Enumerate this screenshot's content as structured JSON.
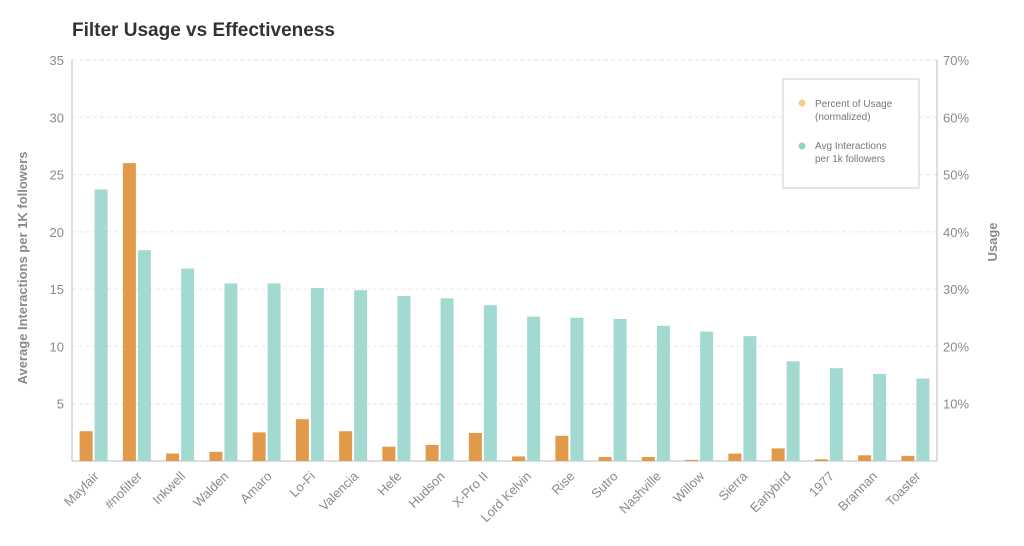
{
  "chart_data": {
    "type": "bar",
    "title": "Filter Usage vs Effectiveness",
    "ylabel": "Average Interactions per 1K followers",
    "y2label": "Usage",
    "ylim": [
      0,
      35
    ],
    "y2lim": [
      0,
      70
    ],
    "yticks": [
      "5",
      "10",
      "15",
      "20",
      "25",
      "30",
      "35"
    ],
    "y2ticks": [
      "10%",
      "20%",
      "30%",
      "40%",
      "50%",
      "60%",
      "70%"
    ],
    "grid": true,
    "legend_position": "top-right",
    "categories": [
      "Mayfair",
      "#nofilter",
      "Inkwell",
      "Walden",
      "Amaro",
      "Lo-Fi",
      "Valencia",
      "Hefe",
      "Hudson",
      "X-Pro II",
      "Lord Kelvin",
      "Rise",
      "Sutro",
      "Nashville",
      "Willow",
      "Sierra",
      "Earlybird",
      "1977",
      "Brannan",
      "Toaster"
    ],
    "series": [
      {
        "name": "Percent of Usage (normalized)",
        "axis": "right",
        "color": "#e09a4a",
        "legend_color": "#f7c98a",
        "values": [
          5.2,
          52.0,
          1.3,
          1.6,
          5.0,
          7.3,
          5.2,
          2.5,
          2.8,
          4.9,
          0.8,
          4.4,
          0.7,
          0.7,
          0.2,
          1.3,
          2.2,
          0.3,
          1.0,
          0.9
        ]
      },
      {
        "name": "Avg Interactions per 1k followers",
        "axis": "left",
        "color": "#a2d9d1",
        "legend_color": "#8fd3cb",
        "values": [
          23.7,
          18.4,
          16.8,
          15.5,
          15.5,
          15.1,
          14.9,
          14.4,
          14.2,
          13.6,
          12.6,
          12.5,
          12.4,
          11.8,
          11.3,
          10.9,
          8.7,
          8.1,
          7.6,
          7.2
        ]
      }
    ]
  },
  "legend": {
    "usage_line1": "Percent of Usage",
    "usage_line2": "(normalized)",
    "interactions_line1": "Avg Interactions",
    "interactions_line2": "per 1k followers"
  }
}
